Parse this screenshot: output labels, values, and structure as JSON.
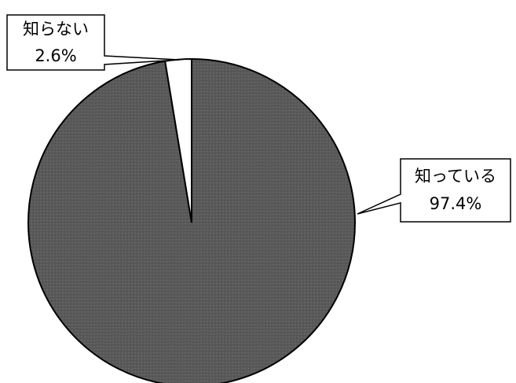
{
  "chart_data": {
    "type": "pie",
    "title": "",
    "slices": [
      {
        "label": "知っている",
        "value": 97.4,
        "value_label": "97.4%",
        "color": "#5a5a5a"
      },
      {
        "label": "知らない",
        "value": 2.6,
        "value_label": "2.6%",
        "color": "#ffffff"
      }
    ],
    "start_direction": "top",
    "direction": "counter-clockwise",
    "legend": "none",
    "label_style": "callout-boxes"
  }
}
